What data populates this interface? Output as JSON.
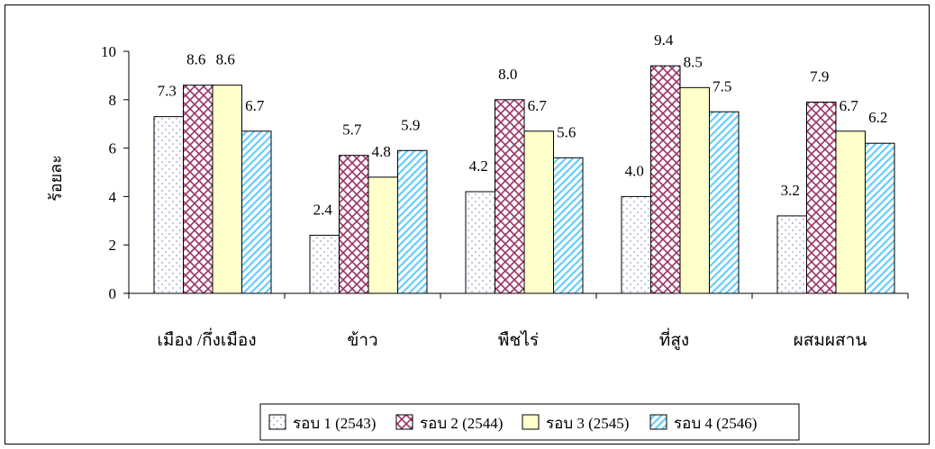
{
  "chart_data": {
    "type": "bar",
    "title": "",
    "xlabel": "",
    "ylabel": "ร้อยละ",
    "ylim": [
      0,
      10
    ],
    "yticks": [
      0,
      2,
      4,
      6,
      8,
      10
    ],
    "grid": false,
    "legend_position": "bottom",
    "categories": [
      "เมือง /กึ่งเมือง",
      "ข้าว",
      "พืชไร่",
      "ที่สูง",
      "ผสมผสาน"
    ],
    "series": [
      {
        "name": "รอบ 1 (2543)",
        "values": [
          7.3,
          2.4,
          4.2,
          4.0,
          3.2
        ],
        "value_labels": [
          "7.3",
          "2.4",
          "4.2",
          "4.0",
          "3.2"
        ],
        "color": "#ffffff",
        "pattern": "dots",
        "pattern_color": "#9999cc"
      },
      {
        "name": "รอบ 2 (2544)",
        "values": [
          8.6,
          5.7,
          8.0,
          9.4,
          7.9
        ],
        "value_labels": [
          "8.6",
          "5.7",
          "8.0",
          "9.4",
          "7.9"
        ],
        "color": "#ffffff",
        "pattern": "crosshatch",
        "pattern_color": "#993366"
      },
      {
        "name": "รอบ 3 (2545)",
        "values": [
          8.6,
          4.8,
          6.7,
          8.5,
          6.7
        ],
        "value_labels": [
          "8.6",
          "4.8",
          "6.7",
          "8.5",
          "6.7"
        ],
        "color": "#ffffcc",
        "pattern": "solid",
        "pattern_color": "#ffffcc"
      },
      {
        "name": "รอบ 4 (2546)",
        "values": [
          6.7,
          5.9,
          5.6,
          7.5,
          6.2
        ],
        "value_labels": [
          "6.7",
          "5.9",
          "5.6",
          "7.5",
          "6.2"
        ],
        "color": "#ffffff",
        "pattern": "diagonal",
        "pattern_color": "#66ccff"
      }
    ]
  }
}
